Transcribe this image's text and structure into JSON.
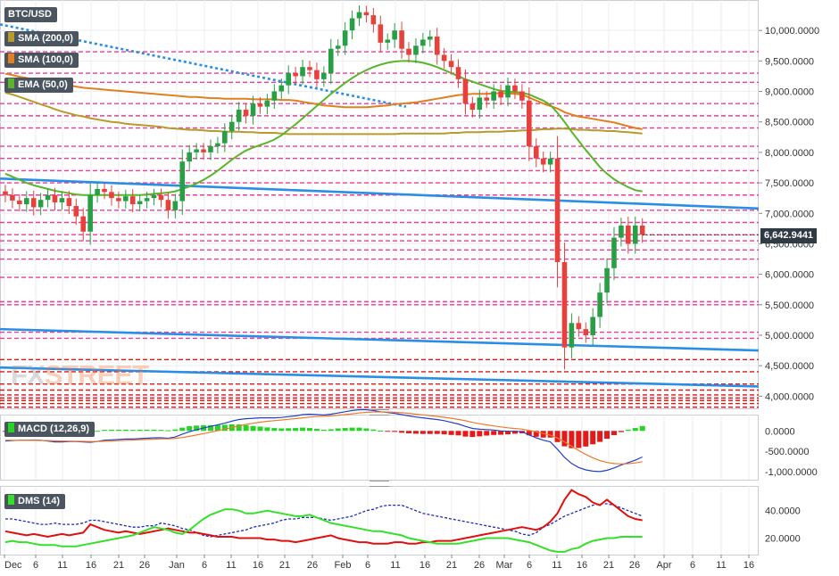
{
  "legend": {
    "pair": "BTC/USD",
    "sma200": "SMA (200,0)",
    "sma100": "SMA (100,0)",
    "ema50": "EMA (50,0)",
    "macd": "MACD (12,26,9)",
    "dms": "DMS (14)"
  },
  "watermark": {
    "part1": "FX",
    "part2": "STREET"
  },
  "last_price": "6,642.9441",
  "colors": {
    "up": "#27a045",
    "down": "#e8413c",
    "sma200": "#b99a2a",
    "sma100": "#e0801f",
    "ema50": "#59b52a",
    "trendline": "#2a8ee6",
    "sr_pink": "#ee3b9b",
    "sr_red": "#d91818",
    "macd_line": "#2540c8",
    "signal_line": "#f07a2a",
    "hist_up": "#26d426",
    "hist_down": "#e61919",
    "plus_di": "#1a2bb8",
    "minus_di": "#e01010",
    "adx": "#36e02a"
  },
  "chart_data": [
    {
      "type": "candlestick",
      "title": "BTC/USD",
      "ylim": [
        3800,
        10500
      ],
      "yticks": [
        "10,000.0000",
        "9,500.0000",
        "9,000.0000",
        "8,500.0000",
        "8,000.0000",
        "7,500.0000",
        "7,000.0000",
        "6,500.0000",
        "6,000.0000",
        "5,500.0000",
        "5,000.0000",
        "4,500.0000",
        "4,000.0000"
      ],
      "x_labels": [
        "Dec",
        "6",
        "11",
        "16",
        "21",
        "26",
        "Jan",
        "6",
        "11",
        "16",
        "21",
        "26",
        "Feb",
        "6",
        "11",
        "16",
        "21",
        "26",
        "Mar",
        "6",
        "11",
        "16",
        "21",
        "26",
        "Apr",
        "6",
        "11",
        "16"
      ],
      "close": [
        7300,
        7210,
        7150,
        7250,
        7100,
        7220,
        7300,
        7180,
        7250,
        7120,
        6950,
        6700,
        7300,
        7400,
        7350,
        7250,
        7200,
        7280,
        7150,
        7200,
        7250,
        7300,
        7220,
        7050,
        7200,
        7850,
        8000,
        8050,
        8000,
        8100,
        8150,
        8350,
        8500,
        8700,
        8600,
        8800,
        8750,
        8850,
        9000,
        9100,
        9300,
        9250,
        9400,
        9350,
        9200,
        9300,
        9700,
        9750,
        10000,
        10200,
        10300,
        10250,
        10100,
        9800,
        9850,
        10000,
        9700,
        9600,
        9750,
        9850,
        9900,
        9600,
        9500,
        9400,
        9200,
        8800,
        8700,
        8900,
        8850,
        9000,
        8900,
        9100,
        9000,
        8850,
        8100,
        7900,
        7800,
        7900,
        6200,
        4800,
        5200,
        5100,
        5000,
        5300,
        5700,
        6100,
        6600,
        6800,
        6500,
        6800,
        6650
      ],
      "sma200": [
        8980,
        8950,
        8910,
        8870,
        8830,
        8790,
        8750,
        8710,
        8670,
        8640,
        8610,
        8590,
        8560,
        8540,
        8520,
        8500,
        8490,
        8470,
        8460,
        8450,
        8440,
        8430,
        8420,
        8400,
        8390,
        8380,
        8370,
        8370,
        8360,
        8350,
        8350,
        8340,
        8340,
        8340,
        8330,
        8330,
        8320,
        8320,
        8320,
        8310,
        8300,
        8300,
        8300,
        8300,
        8300,
        8300,
        8300,
        8300,
        8300,
        8300,
        8300,
        8300,
        8300,
        8300,
        8300,
        8300,
        8310,
        8310,
        8310,
        8310,
        8310,
        8310,
        8310,
        8320,
        8320,
        8330,
        8330,
        8330,
        8340,
        8340,
        8340,
        8350,
        8350,
        8360,
        8360,
        8370,
        8380,
        8380,
        8390,
        8390,
        8380,
        8370,
        8370,
        8360,
        8360,
        8350,
        8350,
        8340,
        8330,
        8320,
        8310
      ],
      "sma100": [
        9290,
        9270,
        9240,
        9220,
        9200,
        9180,
        9160,
        9140,
        9120,
        9100,
        9080,
        9060,
        9050,
        9040,
        9030,
        9020,
        9010,
        9000,
        8990,
        8980,
        8970,
        8960,
        8950,
        8940,
        8930,
        8920,
        8910,
        8910,
        8900,
        8890,
        8890,
        8880,
        8880,
        8880,
        8880,
        8870,
        8870,
        8870,
        8870,
        8860,
        8860,
        8850,
        8830,
        8810,
        8790,
        8770,
        8760,
        8750,
        8740,
        8740,
        8740,
        8740,
        8750,
        8760,
        8770,
        8790,
        8800,
        8810,
        8820,
        8840,
        8860,
        8880,
        8900,
        8920,
        8940,
        8950,
        8960,
        8960,
        8960,
        8970,
        8970,
        8970,
        8960,
        8950,
        8900,
        8850,
        8800,
        8760,
        8720,
        8660,
        8620,
        8590,
        8570,
        8550,
        8530,
        8510,
        8490,
        8460,
        8430,
        8400,
        8380
      ],
      "ema50": [
        7650,
        7600,
        7550,
        7500,
        7460,
        7430,
        7400,
        7370,
        7350,
        7330,
        7310,
        7300,
        7300,
        7300,
        7300,
        7300,
        7300,
        7300,
        7300,
        7300,
        7310,
        7320,
        7330,
        7340,
        7360,
        7400,
        7440,
        7490,
        7550,
        7620,
        7700,
        7790,
        7880,
        7960,
        8030,
        8080,
        8120,
        8160,
        8210,
        8280,
        8370,
        8460,
        8560,
        8660,
        8760,
        8860,
        8960,
        9050,
        9140,
        9220,
        9290,
        9350,
        9400,
        9440,
        9470,
        9490,
        9500,
        9500,
        9490,
        9470,
        9440,
        9400,
        9350,
        9300,
        9250,
        9200,
        9160,
        9120,
        9080,
        9040,
        9010,
        9000,
        8990,
        8980,
        8950,
        8900,
        8850,
        8780,
        8650,
        8500,
        8340,
        8190,
        8040,
        7900,
        7760,
        7650,
        7560,
        7490,
        7430,
        7380,
        7360
      ],
      "trendlines": [
        {
          "from": [
            0,
            7570
          ],
          "to": [
            90,
            7080
          ]
        },
        {
          "from": [
            0,
            5100
          ],
          "to": [
            90,
            4750
          ]
        },
        {
          "from": [
            0,
            4470
          ],
          "to": [
            90,
            4160
          ]
        }
      ],
      "levels_pink": [
        9650,
        9300,
        9150,
        8800,
        8600,
        8400,
        8100,
        7900,
        7700,
        7500,
        7300,
        7050,
        6850,
        6650,
        6550,
        6400,
        6250,
        5950,
        5550,
        5500,
        5050,
        4950
      ],
      "levels_red": [
        4600,
        4400,
        4200,
        4100,
        4020,
        3970,
        3930,
        3880,
        3820
      ],
      "last": 6642.9441
    },
    {
      "type": "line+bar",
      "title": "MACD (12,26,9)",
      "ylim": [
        -1200,
        400
      ],
      "yticks": [
        "0.0000",
        "-500.0000",
        "-1,000.0000"
      ],
      "series": [
        {
          "name": "MACD",
          "values": [
            -250,
            -240,
            -230,
            -230,
            -225,
            -230,
            -250,
            -270,
            -270,
            -260,
            -260,
            -270,
            -280,
            -260,
            -230,
            -220,
            -210,
            -200,
            -200,
            -190,
            -180,
            -170,
            -170,
            -180,
            -150,
            -80,
            -20,
            30,
            70,
            110,
            150,
            190,
            240,
            280,
            300,
            310,
            320,
            320,
            320,
            330,
            350,
            370,
            400,
            410,
            400,
            390,
            410,
            440,
            470,
            500,
            520,
            520,
            500,
            470,
            450,
            430,
            400,
            370,
            340,
            320,
            300,
            280,
            250,
            210,
            170,
            110,
            60,
            40,
            30,
            20,
            0,
            -10,
            -10,
            -20,
            -100,
            -170,
            -230,
            -270,
            -450,
            -650,
            -800,
            -900,
            -960,
            -990,
            -1000,
            -970,
            -910,
            -840,
            -780,
            -720,
            -640
          ]
        },
        {
          "name": "Signal",
          "values": [
            -230,
            -232,
            -233,
            -234,
            -234,
            -235,
            -238,
            -244,
            -249,
            -251,
            -253,
            -257,
            -261,
            -261,
            -255,
            -248,
            -240,
            -232,
            -226,
            -219,
            -211,
            -203,
            -196,
            -193,
            -184,
            -163,
            -134,
            -101,
            -67,
            -31,
            5,
            42,
            82,
            122,
            158,
            188,
            214,
            235,
            252,
            268,
            284,
            301,
            321,
            339,
            351,
            359,
            369,
            383,
            400,
            420,
            440,
            456,
            465,
            466,
            463,
            456,
            445,
            430,
            412,
            394,
            375,
            356,
            335,
            310,
            282,
            248,
            210,
            176,
            147,
            122,
            97,
            76,
            58,
            42,
            13,
            -24,
            -65,
            -106,
            -175,
            -270,
            -376,
            -481,
            -577,
            -660,
            -728,
            -776,
            -803,
            -811,
            -805,
            -788,
            -758
          ]
        }
      ],
      "histogram": [
        -20,
        -10,
        5,
        5,
        10,
        5,
        -10,
        -25,
        -20,
        -10,
        -5,
        -15,
        -20,
        0,
        25,
        30,
        30,
        30,
        25,
        30,
        30,
        30,
        25,
        15,
        35,
        80,
        115,
        130,
        140,
        140,
        145,
        150,
        160,
        160,
        140,
        120,
        105,
        85,
        70,
        60,
        65,
        70,
        80,
        70,
        50,
        30,
        40,
        60,
        70,
        80,
        80,
        60,
        35,
        5,
        -15,
        -25,
        -45,
        -60,
        -70,
        -75,
        -75,
        -75,
        -85,
        -100,
        -110,
        -140,
        -150,
        -135,
        -115,
        -100,
        -95,
        -85,
        -70,
        -60,
        -110,
        -145,
        -165,
        -165,
        -275,
        -380,
        -425,
        -420,
        -385,
        -330,
        -270,
        -195,
        -105,
        -30,
        30,
        70,
        120
      ]
    },
    {
      "type": "line",
      "title": "DMS (14)",
      "ylim": [
        8,
        58
      ],
      "yticks": [
        "40.0000",
        "20.0000"
      ],
      "series": [
        {
          "name": "+DI",
          "values": [
            34,
            34,
            33,
            32,
            31,
            30,
            30,
            31,
            30,
            30,
            30,
            31,
            33,
            33,
            32,
            31,
            30,
            29,
            28,
            28,
            29,
            29,
            31,
            30,
            29,
            27,
            26,
            24,
            22,
            21,
            22,
            23,
            24,
            25,
            26,
            28,
            29,
            30,
            31,
            33,
            34,
            34,
            35,
            35,
            35,
            34,
            33,
            34,
            35,
            36,
            38,
            40,
            41,
            43,
            44,
            44,
            44,
            42,
            40,
            38,
            37,
            36,
            35,
            34,
            33,
            32,
            31,
            30,
            29,
            28,
            27,
            26,
            25,
            23,
            22,
            24,
            28,
            30,
            33,
            36,
            38,
            40,
            42,
            44,
            45,
            45,
            44,
            42,
            40,
            38,
            36
          ]
        },
        {
          "name": "-DI",
          "values": [
            25,
            24,
            23,
            22,
            23,
            22,
            21,
            22,
            23,
            22,
            23,
            24,
            30,
            28,
            26,
            25,
            24,
            25,
            24,
            23,
            24,
            25,
            26,
            27,
            26,
            25,
            24,
            24,
            23,
            22,
            21,
            21,
            21,
            20,
            20,
            20,
            20,
            19,
            19,
            18,
            18,
            17,
            18,
            19,
            20,
            21,
            22,
            20,
            19,
            18,
            17,
            17,
            16,
            16,
            16,
            17,
            17,
            16,
            16,
            17,
            17,
            18,
            18,
            18,
            19,
            20,
            21,
            22,
            23,
            24,
            25,
            26,
            27,
            28,
            27,
            26,
            28,
            32,
            38,
            48,
            55,
            52,
            50,
            46,
            44,
            48,
            44,
            40,
            36,
            34,
            33
          ]
        },
        {
          "name": "ADX",
          "values": [
            17,
            18,
            17,
            17,
            16,
            15,
            15,
            15,
            14,
            14,
            14,
            15,
            16,
            17,
            18,
            19,
            20,
            21,
            22,
            24,
            26,
            28,
            27,
            26,
            24,
            23,
            26,
            30,
            34,
            37,
            39,
            41,
            41,
            40,
            38,
            38,
            39,
            40,
            39,
            38,
            37,
            36,
            36,
            37,
            35,
            33,
            31,
            30,
            29,
            28,
            27,
            26,
            25,
            25,
            24,
            23,
            22,
            20,
            19,
            18,
            17,
            16,
            16,
            16,
            16,
            17,
            18,
            19,
            20,
            20,
            20,
            20,
            19,
            18,
            17,
            15,
            13,
            11,
            10,
            10,
            12,
            13,
            16,
            18,
            19,
            20,
            20,
            21,
            21,
            21,
            21
          ]
        }
      ]
    }
  ]
}
